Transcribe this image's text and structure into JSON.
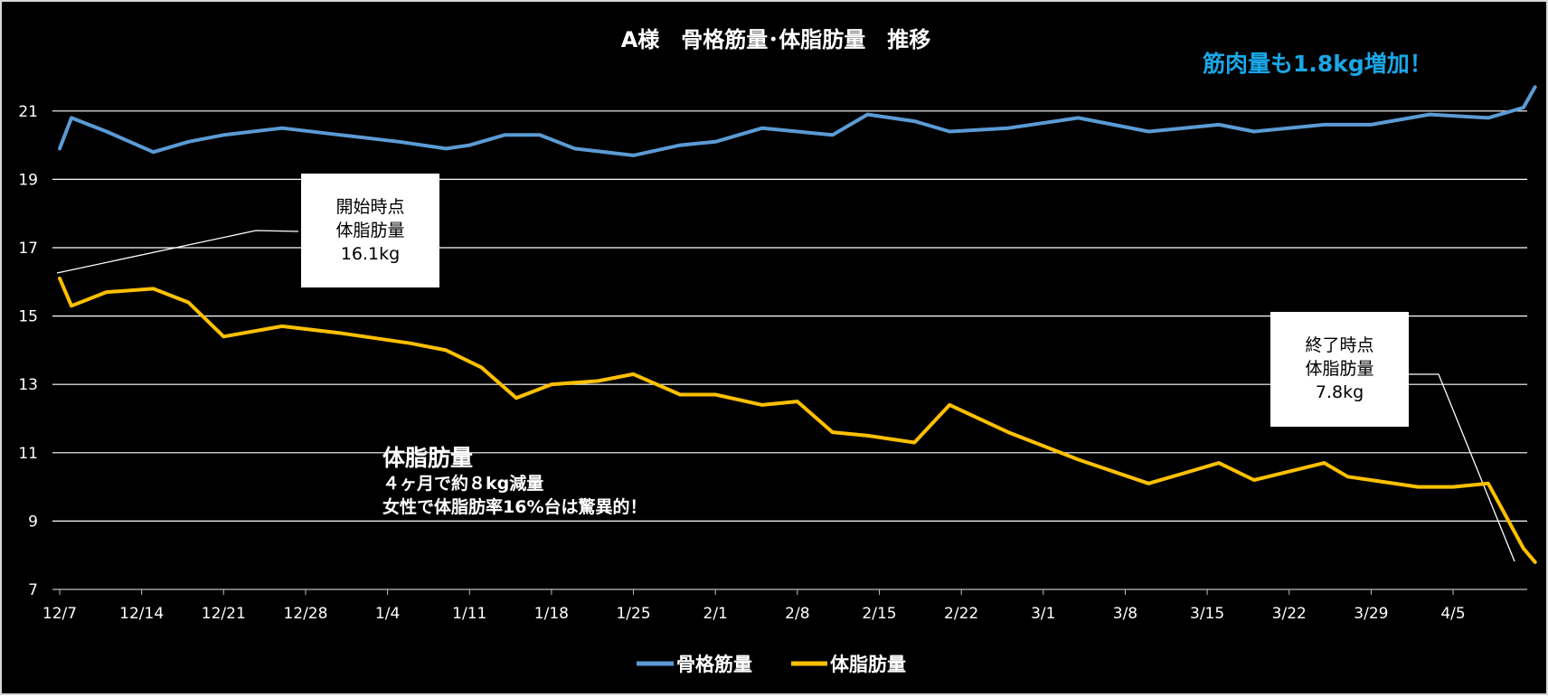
{
  "chart_data": {
    "type": "line",
    "title": "A様　骨格筋量･体脂肪量　推移",
    "x_tick_labels": [
      "12/7",
      "12/14",
      "12/21",
      "12/28",
      "1/4",
      "1/11",
      "1/18",
      "1/25",
      "2/1",
      "2/8",
      "2/15",
      "2/22",
      "3/1",
      "3/8",
      "3/15",
      "3/22",
      "3/29",
      "4/5"
    ],
    "y_ticks": [
      7,
      9,
      11,
      13,
      15,
      17,
      19,
      21
    ],
    "ylim": [
      7,
      22.3
    ],
    "xlim_days": [
      0,
      126
    ],
    "grid": "horizontal",
    "legend_position": "bottom",
    "series": [
      {
        "name": "骨格筋量",
        "color": "#5b9bd5",
        "x": [
          0,
          1,
          4,
          8,
          11,
          14,
          19,
          24,
          29,
          33,
          35,
          38,
          41,
          44,
          49,
          53,
          56,
          60,
          66,
          69,
          73,
          76,
          81,
          87,
          93,
          96,
          99,
          102,
          108,
          112,
          117,
          122,
          125,
          126
        ],
        "values": [
          19.9,
          20.8,
          20.4,
          19.8,
          20.1,
          20.3,
          20.5,
          20.3,
          20.1,
          19.9,
          20.0,
          20.3,
          20.3,
          19.9,
          19.7,
          20.0,
          20.1,
          20.5,
          20.3,
          20.9,
          20.7,
          20.4,
          20.5,
          20.8,
          20.4,
          20.5,
          20.6,
          20.4,
          20.6,
          20.6,
          20.9,
          20.8,
          21.1,
          21.7
        ]
      },
      {
        "name": "体脂肪量",
        "color": "#ffc000",
        "x": [
          0,
          1,
          4,
          8,
          11,
          14,
          19,
          24,
          30,
          33,
          36,
          39,
          42,
          46,
          49,
          53,
          56,
          60,
          63,
          66,
          69,
          73,
          76,
          81,
          87,
          93,
          96,
          99,
          102,
          108,
          110,
          116,
          119,
          122,
          125,
          126
        ],
        "values": [
          16.1,
          15.3,
          15.7,
          15.8,
          15.4,
          14.4,
          14.7,
          14.5,
          14.2,
          14.0,
          13.5,
          12.6,
          13.0,
          13.1,
          13.3,
          12.7,
          12.7,
          12.4,
          12.5,
          11.6,
          11.5,
          11.3,
          12.4,
          11.6,
          10.8,
          10.1,
          10.4,
          10.7,
          10.2,
          10.7,
          10.3,
          10.0,
          10.0,
          10.1,
          8.2,
          7.8
        ]
      }
    ],
    "annotations": {
      "muscle_gain": "筋肉量も1.8kg増加！",
      "start_callout": [
        "開始時点",
        "体脂肪量",
        "16.1kg"
      ],
      "end_callout": [
        "終了時点",
        "体脂肪量",
        "7.8kg"
      ],
      "fat_note": {
        "heading": "体脂肪量",
        "line1": "４ヶ月で約８kg減量",
        "line2": "女性で体脂肪率16%台は驚異的！"
      }
    },
    "colors": {
      "background": "#000000",
      "gridline": "#ffffff",
      "text": "#ffffff",
      "highlight_text": "#1aa7e8"
    }
  }
}
